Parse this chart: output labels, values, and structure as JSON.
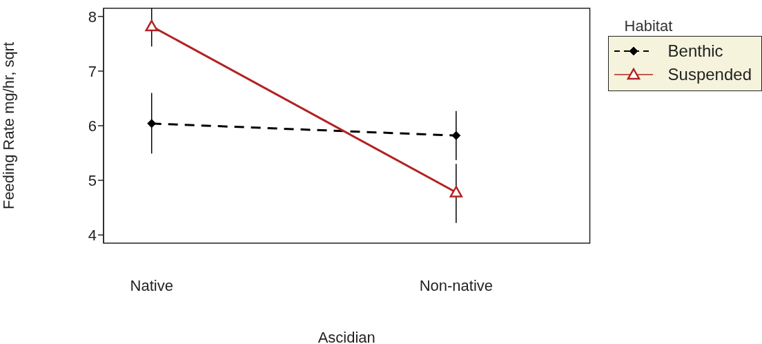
{
  "chart_data": {
    "type": "line",
    "xlabel": "Ascidian",
    "ylabel": "Feeding Rate mg/hr, sqrt",
    "legend_title": "Habitat",
    "legend": "top right",
    "categories": [
      "Native",
      "Non-native"
    ],
    "ylim": [
      3.85,
      8.15
    ],
    "yticks": [
      4,
      5,
      6,
      7,
      8
    ],
    "grid": false,
    "series": [
      {
        "name": "Benthic",
        "color": "#000000",
        "values": [
          6.04,
          5.82
        ],
        "errors": [
          [
            5.49,
            6.6
          ],
          [
            5.37,
            6.27
          ]
        ],
        "marker": "diamond",
        "line_style": "dashed"
      },
      {
        "name": "Suspended",
        "color": "#b22222",
        "values": [
          7.82,
          4.78
        ],
        "errors": [
          [
            7.45,
            8.15
          ],
          [
            4.22,
            5.3
          ]
        ],
        "marker": "triangle",
        "line_style": "solid"
      }
    ]
  }
}
